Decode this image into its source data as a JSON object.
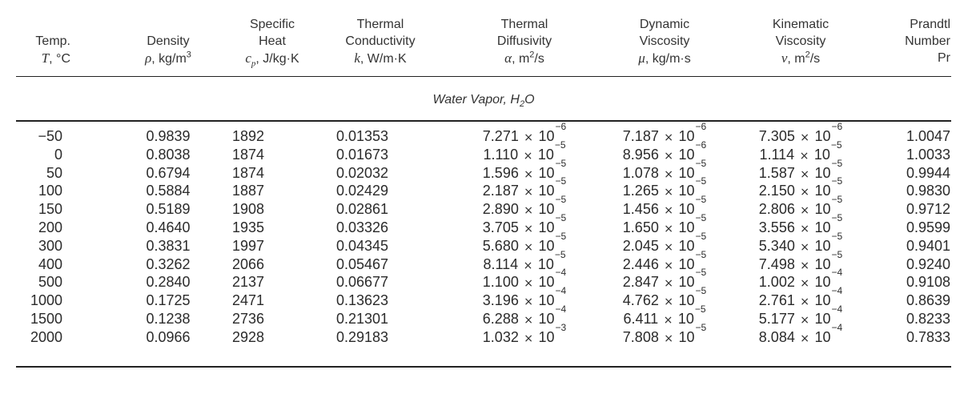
{
  "headers": {
    "temp": [
      "Temp.",
      "T, °C"
    ],
    "density": [
      "Density",
      "ρ, kg/m³"
    ],
    "cp": [
      "Specific",
      "Heat",
      "cp, J/kg·K"
    ],
    "k": [
      "Thermal",
      "Conductivity",
      "k, W/m·K"
    ],
    "alpha": [
      "Thermal",
      "Diffusivity",
      "α, m²/s"
    ],
    "mu": [
      "Dynamic",
      "Viscosity",
      "μ, kg/m·s"
    ],
    "nu": [
      "Kinematic",
      "Viscosity",
      "ν, m²/s"
    ],
    "pr": [
      "Prandtl",
      "Number",
      "Pr"
    ]
  },
  "section_title": "Water Vapor, H2O",
  "rows": [
    {
      "T": "−50",
      "rho": "0.9839",
      "cp": "1892",
      "k": "0.01353",
      "alpha": [
        "7.271",
        "−6"
      ],
      "mu": [
        "7.187",
        "−6"
      ],
      "nu": [
        "7.305",
        "−6"
      ],
      "Pr": "1.0047"
    },
    {
      "T": "0",
      "rho": "0.8038",
      "cp": "1874",
      "k": "0.01673",
      "alpha": [
        "1.110",
        "−5"
      ],
      "mu": [
        "8.956",
        "−6"
      ],
      "nu": [
        "1.114",
        "−5"
      ],
      "Pr": "1.0033"
    },
    {
      "T": "50",
      "rho": "0.6794",
      "cp": "1874",
      "k": "0.02032",
      "alpha": [
        "1.596",
        "−5"
      ],
      "mu": [
        "1.078",
        "−5"
      ],
      "nu": [
        "1.587",
        "−5"
      ],
      "Pr": "0.9944"
    },
    {
      "T": "100",
      "rho": "0.5884",
      "cp": "1887",
      "k": "0.02429",
      "alpha": [
        "2.187",
        "−5"
      ],
      "mu": [
        "1.265",
        "−5"
      ],
      "nu": [
        "2.150",
        "−5"
      ],
      "Pr": "0.9830"
    },
    {
      "T": "150",
      "rho": "0.5189",
      "cp": "1908",
      "k": "0.02861",
      "alpha": [
        "2.890",
        "−5"
      ],
      "mu": [
        "1.456",
        "−5"
      ],
      "nu": [
        "2.806",
        "−5"
      ],
      "Pr": "0.9712"
    },
    {
      "T": "200",
      "rho": "0.4640",
      "cp": "1935",
      "k": "0.03326",
      "alpha": [
        "3.705",
        "−5"
      ],
      "mu": [
        "1.650",
        "−5"
      ],
      "nu": [
        "3.556",
        "−5"
      ],
      "Pr": "0.9599"
    },
    {
      "T": "300",
      "rho": "0.3831",
      "cp": "1997",
      "k": "0.04345",
      "alpha": [
        "5.680",
        "−5"
      ],
      "mu": [
        "2.045",
        "−5"
      ],
      "nu": [
        "5.340",
        "−5"
      ],
      "Pr": "0.9401"
    },
    {
      "T": "400",
      "rho": "0.3262",
      "cp": "2066",
      "k": "0.05467",
      "alpha": [
        "8.114",
        "−5"
      ],
      "mu": [
        "2.446",
        "−5"
      ],
      "nu": [
        "7.498",
        "−5"
      ],
      "Pr": "0.9240"
    },
    {
      "T": "500",
      "rho": "0.2840",
      "cp": "2137",
      "k": "0.06677",
      "alpha": [
        "1.100",
        "−4"
      ],
      "mu": [
        "2.847",
        "−5"
      ],
      "nu": [
        "1.002",
        "−4"
      ],
      "Pr": "0.9108"
    },
    {
      "T": "1000",
      "rho": "0.1725",
      "cp": "2471",
      "k": "0.13623",
      "alpha": [
        "3.196",
        "−4"
      ],
      "mu": [
        "4.762",
        "−5"
      ],
      "nu": [
        "2.761",
        "−4"
      ],
      "Pr": "0.8639"
    },
    {
      "T": "1500",
      "rho": "0.1238",
      "cp": "2736",
      "k": "0.21301",
      "alpha": [
        "6.288",
        "−4"
      ],
      "mu": [
        "6.411",
        "−5"
      ],
      "nu": [
        "5.177",
        "−4"
      ],
      "Pr": "0.8233"
    },
    {
      "T": "2000",
      "rho": "0.0966",
      "cp": "2928",
      "k": "0.29183",
      "alpha": [
        "1.032",
        "−3"
      ],
      "mu": [
        "7.808",
        "−5"
      ],
      "nu": [
        "8.084",
        "−4"
      ],
      "Pr": "0.7833"
    }
  ]
}
